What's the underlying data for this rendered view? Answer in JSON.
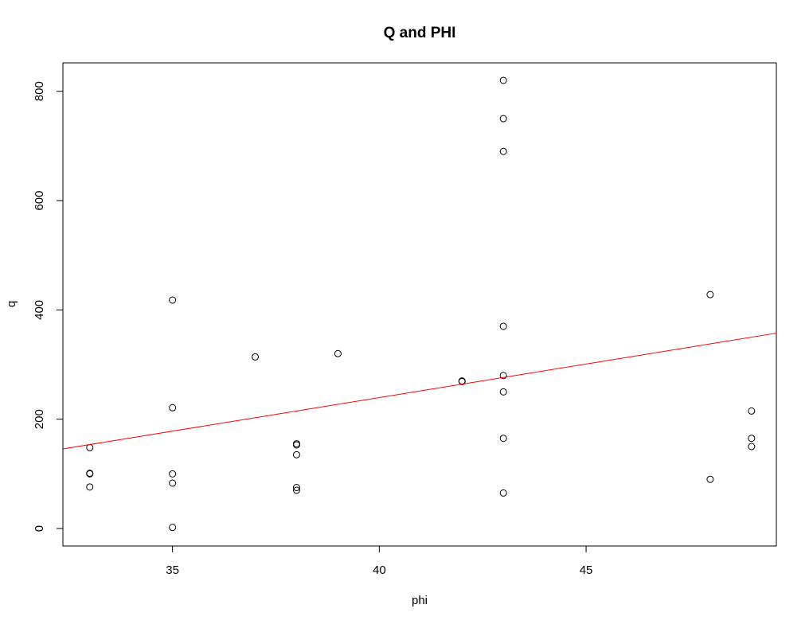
{
  "chart_data": {
    "type": "scatter",
    "title": "Q and PHI",
    "xlabel": "phi",
    "ylabel": "q",
    "xlim": [
      32.35,
      49.6
    ],
    "ylim": [
      -32,
      852
    ],
    "x_ticks": [
      35,
      40,
      45
    ],
    "y_ticks": [
      0,
      200,
      400,
      600,
      800
    ],
    "x_tick_labels": [
      "35",
      "40",
      "45"
    ],
    "y_tick_labels": [
      "0",
      "200",
      "400",
      "600",
      "800"
    ],
    "grid": false,
    "legend": "none",
    "points": [
      {
        "x": 33,
        "y": 148
      },
      {
        "x": 33,
        "y": 100
      },
      {
        "x": 33,
        "y": 101
      },
      {
        "x": 33,
        "y": 76
      },
      {
        "x": 35,
        "y": 418
      },
      {
        "x": 35,
        "y": 221
      },
      {
        "x": 35,
        "y": 100
      },
      {
        "x": 35,
        "y": 83
      },
      {
        "x": 35,
        "y": 2
      },
      {
        "x": 37,
        "y": 314
      },
      {
        "x": 38,
        "y": 155
      },
      {
        "x": 38,
        "y": 153
      },
      {
        "x": 38,
        "y": 135
      },
      {
        "x": 38,
        "y": 75
      },
      {
        "x": 38,
        "y": 70
      },
      {
        "x": 39,
        "y": 320
      },
      {
        "x": 42,
        "y": 270
      },
      {
        "x": 42,
        "y": 269
      },
      {
        "x": 43,
        "y": 820
      },
      {
        "x": 43,
        "y": 750
      },
      {
        "x": 43,
        "y": 690
      },
      {
        "x": 43,
        "y": 370
      },
      {
        "x": 43,
        "y": 280
      },
      {
        "x": 43,
        "y": 250
      },
      {
        "x": 43,
        "y": 165
      },
      {
        "x": 43,
        "y": 65
      },
      {
        "x": 48,
        "y": 428
      },
      {
        "x": 48,
        "y": 90
      },
      {
        "x": 49,
        "y": 215
      },
      {
        "x": 49,
        "y": 165
      },
      {
        "x": 49,
        "y": 150
      }
    ],
    "regression_line": {
      "intercept": -251.6,
      "slope": 12.28,
      "color": "#ff0000"
    },
    "point_color": "#000000"
  }
}
